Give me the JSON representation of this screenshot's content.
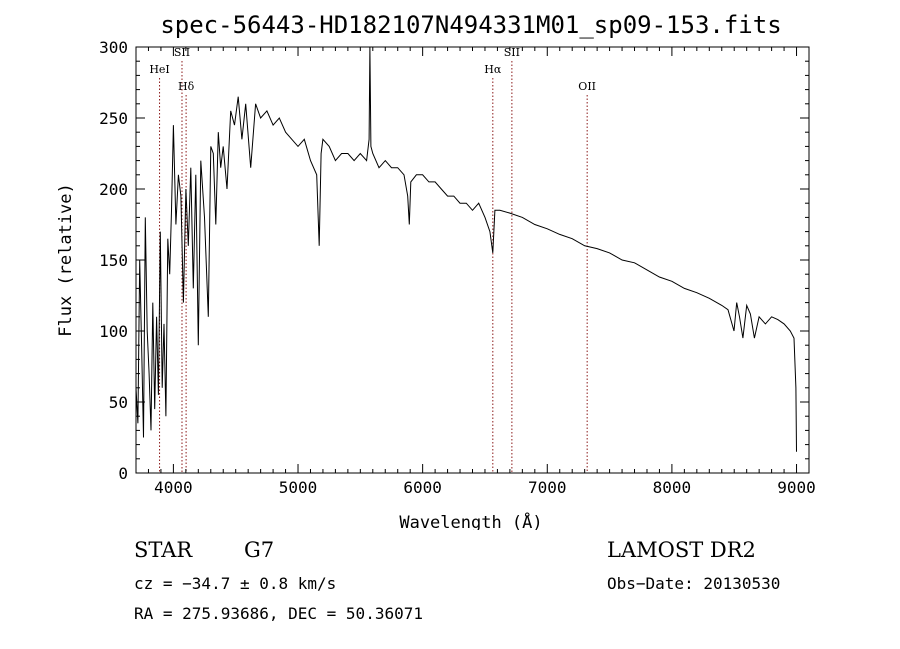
{
  "chart_data": {
    "type": "line",
    "title": "spec-56443-HD182107N494331M01_sp09-153.fits",
    "xlabel": "Wavelength (Å)",
    "ylabel": "Flux (relative)",
    "xlim": [
      3700,
      9100
    ],
    "ylim": [
      0,
      300
    ],
    "x_ticks": [
      4000,
      5000,
      6000,
      7000,
      8000,
      9000
    ],
    "x_tick_labels": [
      "4000",
      "5000",
      "6000",
      "7000",
      "8000",
      "9000"
    ],
    "y_ticks": [
      0,
      50,
      100,
      150,
      200,
      250,
      300
    ],
    "y_tick_labels": [
      "0",
      "50",
      "100",
      "150",
      "200",
      "250",
      "300"
    ],
    "grid": false,
    "line_color": "#000000",
    "marker_color": "#8b1a1a",
    "spectrum": {
      "x": [
        3700,
        3715,
        3730,
        3745,
        3760,
        3775,
        3790,
        3805,
        3820,
        3835,
        3850,
        3865,
        3880,
        3895,
        3910,
        3925,
        3940,
        3955,
        3970,
        3985,
        4000,
        4020,
        4040,
        4060,
        4080,
        4100,
        4120,
        4140,
        4160,
        4180,
        4200,
        4220,
        4250,
        4280,
        4300,
        4320,
        4340,
        4360,
        4380,
        4400,
        4430,
        4460,
        4490,
        4520,
        4550,
        4580,
        4620,
        4660,
        4700,
        4750,
        4800,
        4850,
        4900,
        4950,
        5000,
        5050,
        5100,
        5150,
        5170,
        5185,
        5200,
        5250,
        5300,
        5350,
        5400,
        5450,
        5500,
        5550,
        5570,
        5577,
        5585,
        5600,
        5650,
        5700,
        5750,
        5800,
        5850,
        5880,
        5893,
        5905,
        5950,
        6000,
        6050,
        6100,
        6150,
        6200,
        6250,
        6300,
        6350,
        6400,
        6450,
        6500,
        6540,
        6563,
        6580,
        6620,
        6700,
        6800,
        6900,
        7000,
        7100,
        7200,
        7300,
        7400,
        7500,
        7600,
        7700,
        7800,
        7900,
        8000,
        8100,
        8200,
        8300,
        8400,
        8450,
        8498,
        8520,
        8542,
        8570,
        8600,
        8630,
        8662,
        8700,
        8750,
        8800,
        8850,
        8900,
        8950,
        8980,
        8995,
        9000
      ],
      "y": [
        60,
        35,
        150,
        90,
        25,
        180,
        100,
        70,
        30,
        120,
        45,
        110,
        55,
        170,
        60,
        105,
        40,
        165,
        140,
        185,
        245,
        175,
        210,
        195,
        120,
        200,
        160,
        215,
        130,
        210,
        90,
        220,
        180,
        110,
        230,
        225,
        175,
        240,
        215,
        230,
        200,
        255,
        245,
        265,
        235,
        260,
        215,
        260,
        250,
        255,
        245,
        250,
        240,
        235,
        230,
        235,
        220,
        210,
        160,
        225,
        235,
        230,
        220,
        225,
        225,
        220,
        225,
        220,
        235,
        300,
        230,
        225,
        215,
        220,
        215,
        215,
        210,
        195,
        175,
        205,
        210,
        210,
        205,
        205,
        200,
        195,
        195,
        190,
        190,
        185,
        190,
        180,
        170,
        155,
        185,
        185,
        183,
        180,
        175,
        172,
        168,
        165,
        160,
        158,
        155,
        150,
        148,
        143,
        138,
        135,
        130,
        127,
        123,
        118,
        115,
        100,
        120,
        110,
        95,
        118,
        112,
        95,
        110,
        105,
        110,
        108,
        105,
        100,
        95,
        60,
        15
      ]
    },
    "line_markers": [
      {
        "label": "HeI",
        "x": 3889
      },
      {
        "label": "SII",
        "x": 4069
      },
      {
        "label": "Hδ",
        "x": 4102
      },
      {
        "label": "Hα",
        "x": 6563
      },
      {
        "label": "SII",
        "x": 6716
      },
      {
        "label": "OII",
        "x": 7320
      }
    ]
  },
  "info": {
    "class": "STAR",
    "subclass": "G7",
    "survey": "LAMOST DR2",
    "cz": "cz = −34.7 ± 0.8 km/s",
    "obs_date": "Obs−Date: 20130530",
    "coords": "RA = 275.93686, DEC =  50.36071"
  }
}
